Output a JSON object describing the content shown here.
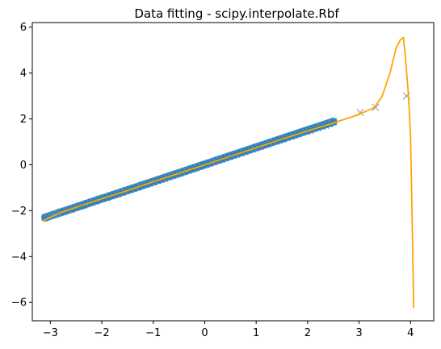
{
  "chart_data": {
    "type": "scatter",
    "title": "Data fitting - scipy.interpolate.Rbf",
    "xlabel": "",
    "ylabel": "",
    "xlim": [
      -3.35,
      4.45
    ],
    "ylim": [
      -6.8,
      6.2
    ],
    "x_ticks": [
      {
        "value": -3,
        "label": "−3"
      },
      {
        "value": -2,
        "label": "−2"
      },
      {
        "value": -1,
        "label": "−1"
      },
      {
        "value": 0,
        "label": "0"
      },
      {
        "value": 1,
        "label": "1"
      },
      {
        "value": 2,
        "label": "2"
      },
      {
        "value": 3,
        "label": "3"
      },
      {
        "value": 4,
        "label": "4"
      }
    ],
    "y_ticks": [
      {
        "value": -6,
        "label": "−6"
      },
      {
        "value": -4,
        "label": "−4"
      },
      {
        "value": -2,
        "label": "−2"
      },
      {
        "value": 0,
        "label": "0"
      },
      {
        "value": 2,
        "label": "2"
      },
      {
        "value": 4,
        "label": "4"
      },
      {
        "value": 6,
        "label": "6"
      }
    ],
    "grid": false,
    "legend": "none",
    "series": [
      {
        "kind": "scatter",
        "marker": "x",
        "color": "#1f77b4",
        "outlier_color": "#7f7f7f",
        "x": [
          -3.1,
          -2.8,
          -2.73,
          -2.6,
          -2.5,
          -2.42,
          -2.35,
          -2.28,
          -2.2,
          -2.12,
          -2.05,
          -1.98,
          -1.9,
          -1.82,
          -1.75,
          -1.68,
          -1.6,
          -1.52,
          -1.45,
          -1.38,
          -1.3,
          -1.22,
          -1.15,
          -1.08,
          -1.0,
          -0.92,
          -0.85,
          -0.78,
          -0.7,
          -0.62,
          -0.55,
          -0.48,
          -0.4,
          -0.32,
          -0.25,
          -0.18,
          -0.1,
          -0.03,
          0.03,
          0.1,
          0.18,
          0.25,
          0.32,
          0.4,
          0.48,
          0.55,
          0.62,
          0.7,
          0.78,
          0.85,
          0.92,
          1.0,
          1.08,
          1.15,
          1.22,
          1.3,
          1.38,
          1.45,
          1.52,
          1.6,
          1.68,
          1.75,
          1.82,
          1.9,
          1.98,
          2.05,
          2.12,
          2.2,
          2.28,
          2.35,
          2.42,
          2.5,
          3.02,
          3.32,
          3.92
        ],
        "y": [
          -2.3,
          -2.05,
          -2.02,
          -1.95,
          -1.85,
          -1.8,
          -1.76,
          -1.68,
          -1.62,
          -1.58,
          -1.5,
          -1.46,
          -1.42,
          -1.35,
          -1.3,
          -1.25,
          -1.2,
          -1.12,
          -1.08,
          -1.03,
          -0.98,
          -0.9,
          -0.86,
          -0.8,
          -0.75,
          -0.68,
          -0.64,
          -0.58,
          -0.52,
          -0.46,
          -0.41,
          -0.36,
          -0.3,
          -0.24,
          -0.19,
          -0.13,
          -0.07,
          -0.02,
          0.02,
          0.07,
          0.13,
          0.19,
          0.24,
          0.3,
          0.36,
          0.41,
          0.46,
          0.52,
          0.58,
          0.64,
          0.68,
          0.75,
          0.8,
          0.86,
          0.9,
          0.98,
          1.03,
          1.08,
          1.12,
          1.2,
          1.25,
          1.3,
          1.35,
          1.42,
          1.46,
          1.5,
          1.58,
          1.62,
          1.68,
          1.72,
          1.78,
          1.88,
          2.28,
          2.5,
          3.0
        ]
      },
      {
        "kind": "line",
        "color": "#ffa500",
        "x": [
          -3.15,
          -2.8,
          -2.4,
          -2.0,
          -1.5,
          -1.0,
          -0.5,
          0.0,
          0.5,
          1.0,
          1.5,
          2.0,
          2.5,
          3.0,
          3.3,
          3.45,
          3.6,
          3.72,
          3.8,
          3.86,
          3.9,
          3.96,
          4.0,
          4.04,
          4.06
        ],
        "y": [
          -2.45,
          -2.08,
          -1.78,
          -1.48,
          -1.12,
          -0.74,
          -0.37,
          0.0,
          0.37,
          0.74,
          1.12,
          1.48,
          1.82,
          2.2,
          2.5,
          3.0,
          4.0,
          5.1,
          5.45,
          5.55,
          4.7,
          3.0,
          1.2,
          -3.5,
          -6.25
        ]
      }
    ]
  }
}
